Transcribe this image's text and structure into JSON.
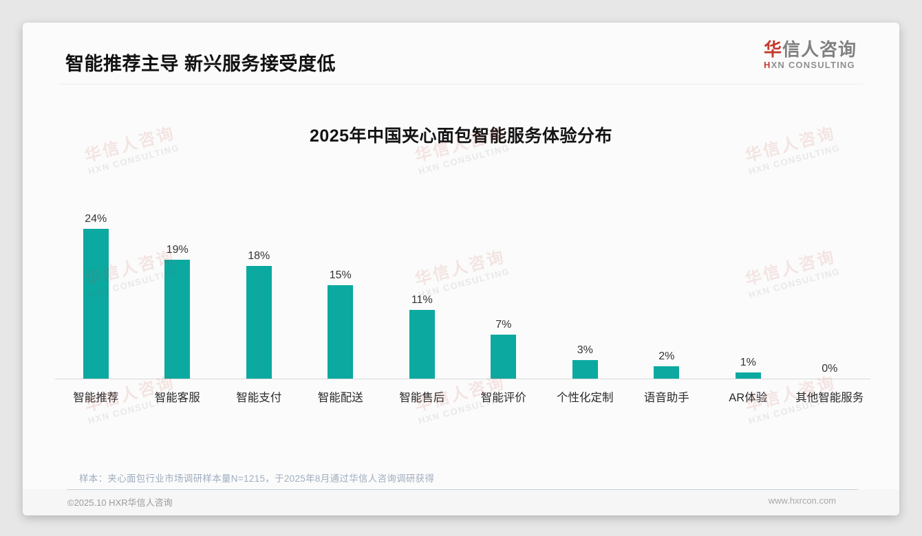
{
  "header": {
    "title": "智能推荐主导 新兴服务接受度低",
    "logo": {
      "cn_accent": "华",
      "cn_rest": "信人咨询",
      "en_accent": "H",
      "en_rest": "XN CONSULTING"
    }
  },
  "chart_data": {
    "type": "bar",
    "title": "2025年中国夹心面包智能服务体验分布",
    "categories": [
      "智能推荐",
      "智能客服",
      "智能支付",
      "智能配送",
      "智能售后",
      "智能评价",
      "个性化定制",
      "语音助手",
      "AR体验",
      "其他智能服务"
    ],
    "values": [
      24,
      19,
      18,
      15,
      11,
      7,
      3,
      2,
      1,
      0
    ],
    "value_labels": [
      "24%",
      "19%",
      "18%",
      "15%",
      "11%",
      "7%",
      "3%",
      "2%",
      "1%",
      "0%"
    ],
    "unit": "%",
    "bar_color": "#0ba9a0",
    "ylim": [
      0,
      26
    ],
    "grid": false,
    "legend": "none",
    "xlabel": "",
    "ylabel": ""
  },
  "note": "样本：夹心面包行业市场调研样本量N=1215，于2025年8月通过华信人咨询调研获得",
  "footer": {
    "copyright": "©2025.10 HXR华信人咨询",
    "website": "www.hxrcon.com"
  },
  "watermark": {
    "line1": "华信人咨询",
    "line2": "HXN CONSULTING"
  },
  "colors": {
    "accent_teal": "#0ba9a0",
    "brand_red": "#c43a2e",
    "note_text": "#9fadbf"
  }
}
